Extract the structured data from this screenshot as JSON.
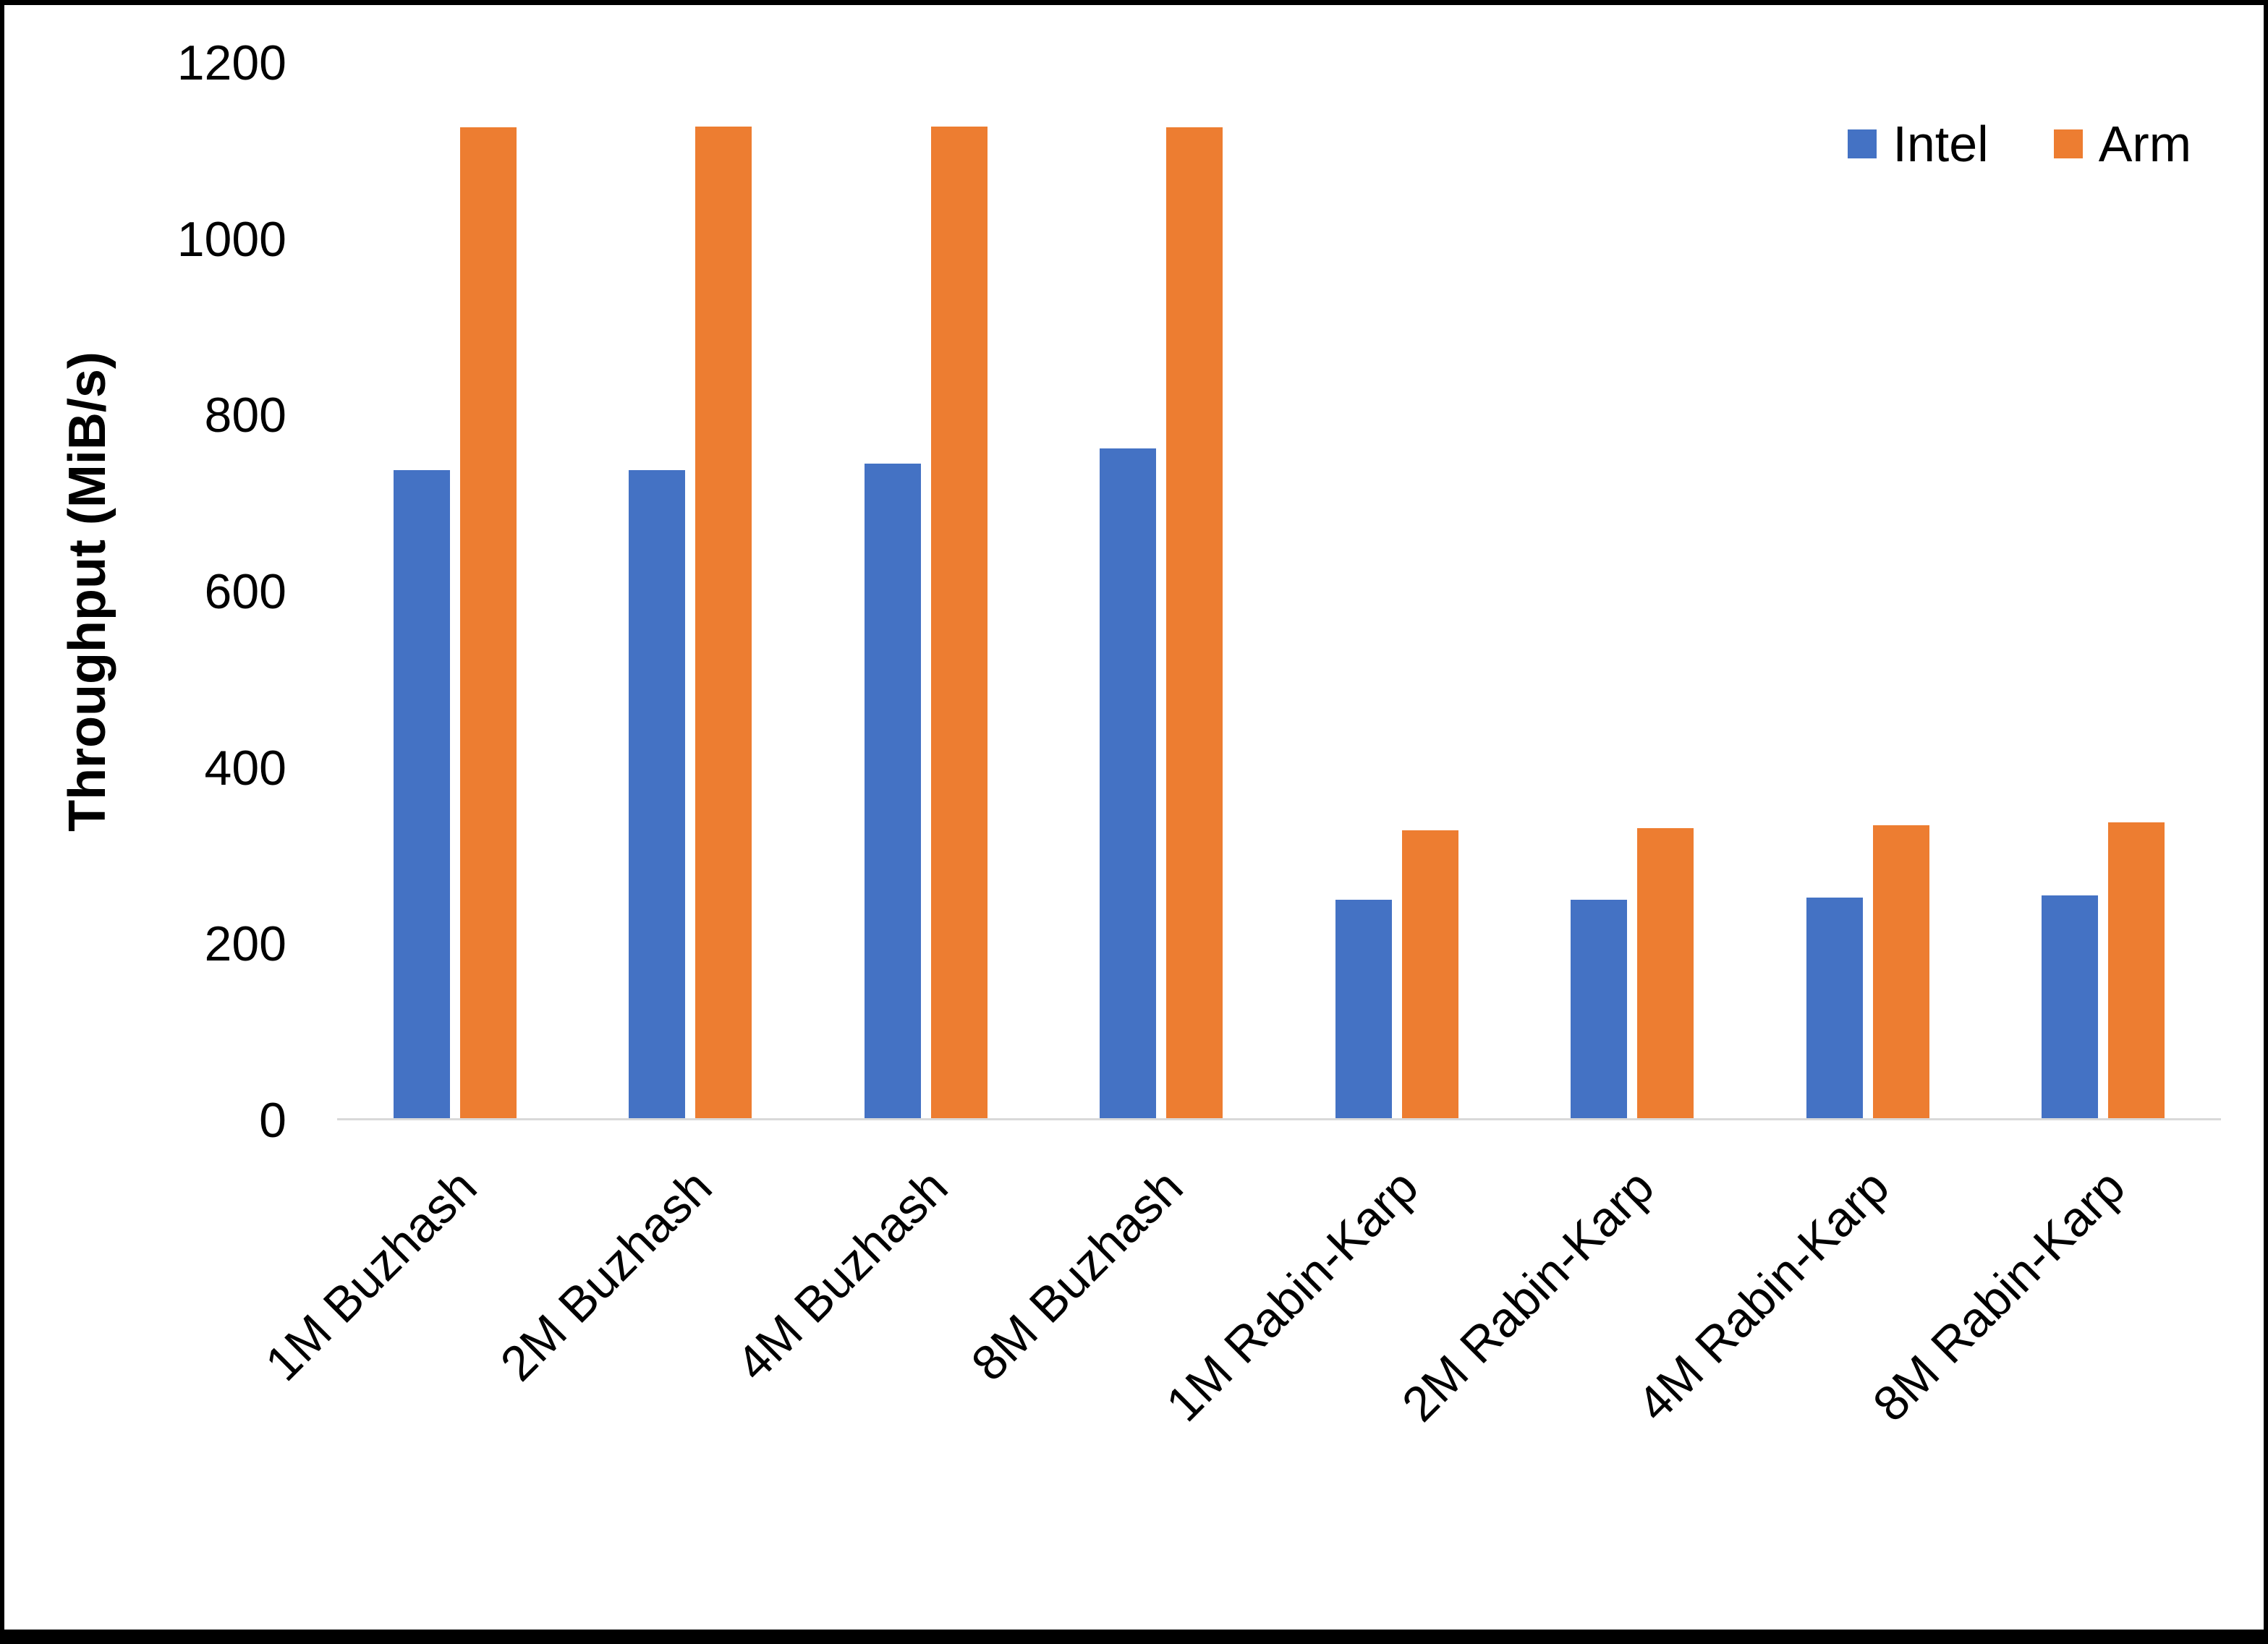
{
  "chart_data": {
    "type": "bar",
    "title": "",
    "categories": [
      "1M Buzhash",
      "2M Buzhash",
      "4M Buzhash",
      "8M Buzhash",
      "1M Rabin-Karp",
      "2M Rabin-Karp",
      "4M Rabin-Karp",
      "8M Rabin-Karp"
    ],
    "series": [
      {
        "name": "Intel",
        "color": "#4472C4",
        "values": [
          737,
          737,
          744,
          762,
          248,
          248,
          251,
          253
        ]
      },
      {
        "name": "Arm",
        "color": "#ED7D31",
        "values": [
          1127,
          1128,
          1128,
          1127,
          327,
          330,
          333,
          336
        ]
      }
    ],
    "xlabel": "",
    "ylabel": "Throughput (MiB/s)",
    "ylim": [
      0,
      1200
    ],
    "yticks": [
      "0",
      "200",
      "400",
      "600",
      "800",
      "1000",
      "1200"
    ],
    "ytick_values": [
      0,
      200,
      400,
      600,
      800,
      1000,
      1200
    ],
    "grid": false,
    "legend_position": "top-right",
    "axis_line_color": "#d9d9d9"
  }
}
